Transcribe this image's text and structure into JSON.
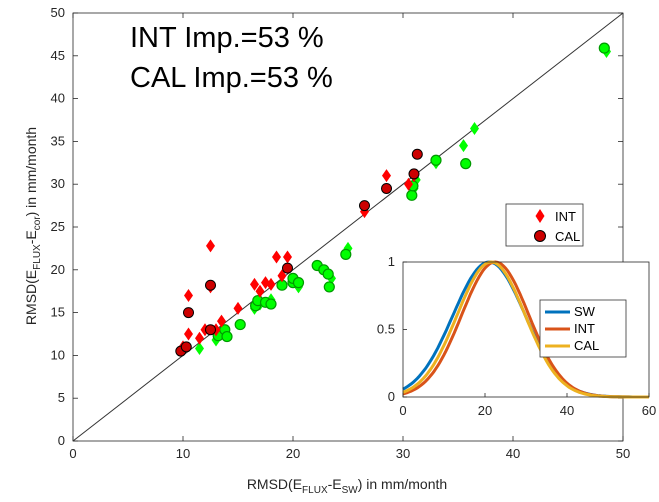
{
  "chart_data": [
    {
      "type": "scatter",
      "annotations": [
        "INT Imp.=53 %",
        "CAL Imp.=53 %"
      ],
      "xlabel": {
        "main": "RMSD(E",
        "sub1": "FLUX",
        "mid": "-E",
        "sub2": "SW",
        "tail": ") in mm/month"
      },
      "ylabel": {
        "main": "RMSD(E",
        "sub1": "FLUX",
        "mid": "-E",
        "sub2": "cor",
        "tail": ") in mm/month"
      },
      "xlim": [
        0,
        50
      ],
      "ylim": [
        0,
        50
      ],
      "xticks": [
        "0",
        "10",
        "20",
        "30",
        "40",
        "50"
      ],
      "yticks": [
        "0",
        "5",
        "10",
        "15",
        "20",
        "25",
        "30",
        "35",
        "40",
        "45",
        "50"
      ],
      "reference_line": "1:1",
      "legend_position": "middle-right",
      "colors": {
        "INT": "#ff0000",
        "CAL": "#cc0000",
        "SW": "#00ff00",
        "SW_outline": "#009900"
      },
      "series": [
        {
          "name": "INT",
          "marker": "diamond",
          "points": [
            [
              10.0,
              11.0
            ],
            [
              10.5,
              12.5
            ],
            [
              10.5,
              17.0
            ],
            [
              11.5,
              12.0
            ],
            [
              12.0,
              13.0
            ],
            [
              12.5,
              22.8
            ],
            [
              12.5,
              18.0
            ],
            [
              13.0,
              13.0
            ],
            [
              13.5,
              14.0
            ],
            [
              15.0,
              15.5
            ],
            [
              16.5,
              18.3
            ],
            [
              17.0,
              17.5
            ],
            [
              17.5,
              18.5
            ],
            [
              18.0,
              18.3
            ],
            [
              18.5,
              21.5
            ],
            [
              19.0,
              19.3
            ],
            [
              19.5,
              21.5
            ],
            [
              26.5,
              26.8
            ],
            [
              28.5,
              31.0
            ],
            [
              30.5,
              30.0
            ],
            [
              31.0,
              31.0
            ]
          ]
        },
        {
          "name": "CAL",
          "marker": "circle",
          "points": [
            [
              9.8,
              10.5
            ],
            [
              10.3,
              11.0
            ],
            [
              10.5,
              15.0
            ],
            [
              12.5,
              13.0
            ],
            [
              12.5,
              18.2
            ],
            [
              19.5,
              20.2
            ],
            [
              26.5,
              27.5
            ],
            [
              28.5,
              29.5
            ],
            [
              31.0,
              31.2
            ],
            [
              31.3,
              33.5
            ]
          ]
        },
        {
          "name": "",
          "marker": "diamond",
          "points": [
            [
              11.5,
              10.8
            ],
            [
              13.0,
              11.8
            ],
            [
              14.0,
              12.5
            ],
            [
              16.5,
              15.5
            ],
            [
              17.0,
              16.0
            ],
            [
              18.0,
              16.5
            ],
            [
              20.5,
              18.0
            ],
            [
              23.5,
              19.0
            ],
            [
              25.0,
              22.5
            ],
            [
              31.0,
              29.5
            ],
            [
              31.2,
              30.5
            ],
            [
              33.0,
              32.5
            ],
            [
              35.5,
              34.5
            ],
            [
              36.5,
              36.5
            ],
            [
              48.5,
              45.5
            ]
          ]
        },
        {
          "name": "",
          "marker": "circle",
          "points": [
            [
              13.2,
              12.3
            ],
            [
              13.8,
              13.0
            ],
            [
              14.0,
              12.2
            ],
            [
              15.2,
              13.6
            ],
            [
              16.6,
              15.8
            ],
            [
              16.8,
              16.4
            ],
            [
              17.5,
              16.2
            ],
            [
              18.0,
              16.0
            ],
            [
              19.0,
              18.2
            ],
            [
              20.0,
              18.5
            ],
            [
              20.0,
              19.0
            ],
            [
              20.5,
              18.5
            ],
            [
              22.2,
              20.5
            ],
            [
              22.8,
              20.0
            ],
            [
              23.2,
              19.5
            ],
            [
              23.3,
              18.0
            ],
            [
              24.8,
              21.8
            ],
            [
              30.8,
              28.7
            ],
            [
              30.9,
              29.8
            ],
            [
              33.0,
              32.8
            ],
            [
              35.7,
              32.4
            ],
            [
              48.3,
              45.9
            ]
          ]
        }
      ]
    },
    {
      "type": "line",
      "xlim": [
        0,
        60
      ],
      "ylim": [
        0,
        1
      ],
      "xticks": [
        "0",
        "20",
        "40",
        "60"
      ],
      "yticks": [
        "0",
        "0.5",
        "1"
      ],
      "legend_position": "right",
      "series": [
        {
          "name": "SW",
          "color": "#0072bd",
          "mu": 21.0,
          "sigma": 8.8
        },
        {
          "name": "INT",
          "color": "#d95319",
          "mu": 22.5,
          "sigma": 8.2
        },
        {
          "name": "CAL",
          "color": "#edb120",
          "mu": 21.5,
          "sigma": 8.3
        }
      ]
    }
  ]
}
